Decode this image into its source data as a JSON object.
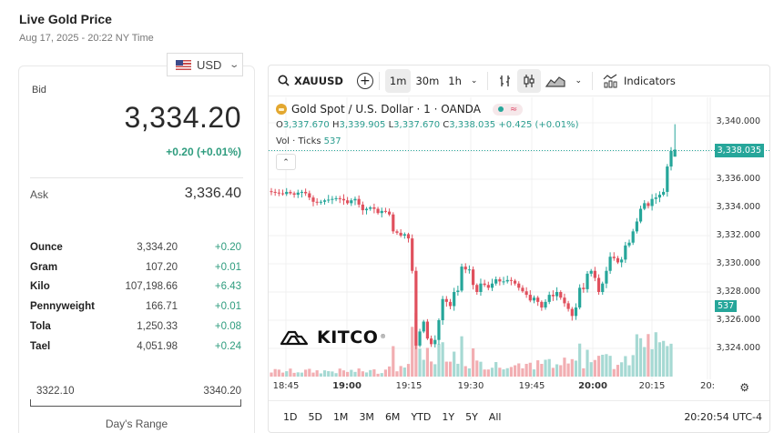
{
  "page": {
    "title": "Live Gold Price",
    "subtitle": "Aug 17, 2025 - 20:22 NY Time"
  },
  "currency": {
    "selected": "USD",
    "flag_icon": "us-flag-icon"
  },
  "price_card": {
    "bid_label": "Bid",
    "bid_value": "3,334.20",
    "bid_change": "+0.20 (+0.01%)",
    "ask_label": "Ask",
    "ask_value": "3,336.40",
    "units": [
      {
        "name": "Ounce",
        "price": "3,334.20",
        "change": "+0.20"
      },
      {
        "name": "Gram",
        "price": "107.20",
        "change": "+0.01"
      },
      {
        "name": "Kilo",
        "price": "107,198.66",
        "change": "+6.43"
      },
      {
        "name": "Pennyweight",
        "price": "166.71",
        "change": "+0.01"
      },
      {
        "name": "Tola",
        "price": "1,250.33",
        "change": "+0.08"
      },
      {
        "name": "Tael",
        "price": "4,051.98",
        "change": "+0.24"
      }
    ],
    "range_low": "3322.10",
    "range_high": "3340.20",
    "range_label": "Day's Range"
  },
  "chart": {
    "toolbar": {
      "symbol": "XAUUSD",
      "intervals": [
        "1m",
        "30m",
        "1h"
      ],
      "active_interval": "1m",
      "indicators_label": "Indicators"
    },
    "legend": {
      "title": "Gold Spot / U.S. Dollar · 1 · OANDA",
      "o_label": "O",
      "o": "3,337.670",
      "h_label": "H",
      "h": "3,339.905",
      "l_label": "L",
      "l": "3,337.670",
      "c_label": "C",
      "c": "3,338.035",
      "change": "+0.425 (+0.01%)",
      "vol_label": "Vol · Ticks",
      "vol_value": "537"
    },
    "watermark": "KITCO",
    "last_price_tag": "3,338.035",
    "volume_tag": "537",
    "y_axis": [
      "3,340.000",
      "3,336.000",
      "3,334.000",
      "3,332.000",
      "3,330.000",
      "3,328.000",
      "3,326.000",
      "3,324.000"
    ],
    "x_axis": [
      {
        "label": "18:45",
        "bold": false
      },
      {
        "label": "19:00",
        "bold": true
      },
      {
        "label": "19:15",
        "bold": false
      },
      {
        "label": "19:30",
        "bold": false
      },
      {
        "label": "19:45",
        "bold": false
      },
      {
        "label": "20:00",
        "bold": true
      },
      {
        "label": "20:15",
        "bold": false
      },
      {
        "label": "20:",
        "bold": false
      }
    ],
    "ranges": [
      "1D",
      "5D",
      "1M",
      "3M",
      "6M",
      "YTD",
      "1Y",
      "5Y",
      "All"
    ],
    "timestamp": "20:20:54 UTC-4",
    "colors": {
      "up": "#26a69a",
      "down": "#e0505d",
      "up_vol": "#a6d9d3",
      "down_vol": "#f2aeb2"
    }
  },
  "chart_data": {
    "type": "candlestick",
    "title": "Gold Spot / U.S. Dollar · 1 · OANDA",
    "x_ticks": [
      "18:45",
      "19:00",
      "19:15",
      "19:30",
      "19:45",
      "20:00",
      "20:15"
    ],
    "y_range": [
      3322.5,
      3341
    ],
    "y_ticks": [
      3324,
      3326,
      3328,
      3330,
      3332,
      3334,
      3336,
      3338,
      3340
    ],
    "last": 3338.035,
    "closes": [
      3335.1,
      3335.05,
      3335.0,
      3334.95,
      3335.1,
      3335.0,
      3334.9,
      3335.05,
      3335.1,
      3335.0,
      3334.7,
      3334.4,
      3334.35,
      3334.4,
      3334.5,
      3334.55,
      3334.6,
      3334.65,
      3334.6,
      3334.5,
      3334.3,
      3334.5,
      3334.6,
      3334.2,
      3333.8,
      3333.9,
      3334.0,
      3333.9,
      3333.6,
      3333.75,
      3333.7,
      3333.5,
      3332.3,
      3332.2,
      3332.0,
      3332.1,
      3331.8,
      3329.5,
      3324.2,
      3325.2,
      3325.9,
      3324.7,
      3324.3,
      3324.6,
      3326.0,
      3327.5,
      3327.3,
      3327.0,
      3328.0,
      3328.1,
      3329.8,
      3329.6,
      3329.6,
      3328.5,
      3328.0,
      3328.6,
      3328.5,
      3328.3,
      3328.6,
      3328.9,
      3328.75,
      3328.75,
      3328.85,
      3328.8,
      3328.6,
      3328.3,
      3328.05,
      3327.8,
      3327.4,
      3327.6,
      3327.3,
      3326.9,
      3327.3,
      3327.8,
      3327.7,
      3328.0,
      3327.6,
      3327.2,
      3326.8,
      3326.3,
      3326.9,
      3328.3,
      3328.2,
      3329.3,
      3329.5,
      3329.0,
      3328.0,
      3328.6,
      3329.5,
      3330.5,
      3330.4,
      3330.1,
      3330.3,
      3331.3,
      3331.5,
      3332.3,
      3333.0,
      3333.9,
      3334.3,
      3334.1,
      3334.6,
      3334.7,
      3334.9,
      3335.1,
      3336.9,
      3338.0
    ]
  }
}
